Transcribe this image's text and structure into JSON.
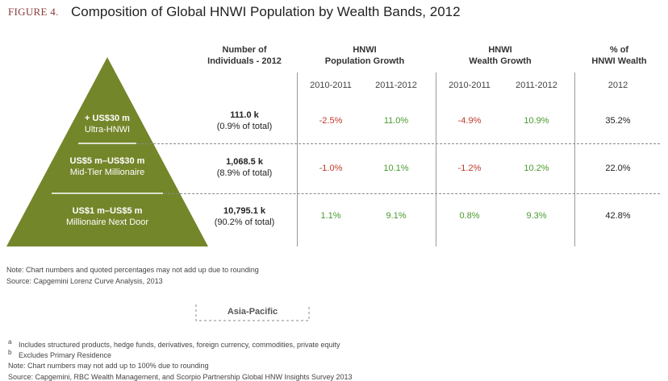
{
  "figure_label": "FIGURE 4.",
  "title": "Composition of Global HNWI Population by Wealth Bands, 2012",
  "headers": {
    "count": [
      "Number of",
      "Individuals - 2012"
    ],
    "pop_growth": [
      "HNWI",
      "Population Growth"
    ],
    "wealth_growth": [
      "HNWI",
      "Wealth Growth"
    ],
    "share": [
      "% of",
      "HNWI Wealth"
    ]
  },
  "subheaders": {
    "pop_2011": "2010-2011",
    "pop_2012": "2011-2012",
    "wealth_2011": "2010-2011",
    "wealth_2012": "2011-2012",
    "share_year": "2012"
  },
  "chart_data": {
    "type": "table",
    "title": "Composition of Global HNWI Population by Wealth Bands, 2012",
    "columns": [
      "Number of Individuals - 2012",
      "HNWI Population Growth 2010-2011",
      "HNWI Population Growth 2011-2012",
      "HNWI Wealth Growth 2010-2011",
      "HNWI Wealth Growth 2011-2012",
      "% of HNWI Wealth 2012"
    ],
    "rows": [
      {
        "band": "+ US$30 m",
        "band_name": "Ultra-HNWI",
        "count": "111.0 k",
        "count_share": "(0.9% of total)",
        "pop_growth_2011": "-2.5%",
        "pop_growth_2012": "11.0%",
        "wealth_growth_2011": "-4.9%",
        "wealth_growth_2012": "10.9%",
        "wealth_share": "35.2%"
      },
      {
        "band": "US$5 m–US$30 m",
        "band_name": "Mid-Tier Millionaire",
        "count": "1,068.5 k",
        "count_share": "(8.9% of total)",
        "pop_growth_2011": "-1.0%",
        "pop_growth_2012": "10.1%",
        "wealth_growth_2011": "-1.2%",
        "wealth_growth_2012": "10.2%",
        "wealth_share": "22.0%"
      },
      {
        "band": "US$1 m–US$5 m",
        "band_name": "Millionaire Next Door",
        "count": "10,795.1 k",
        "count_share": "(90.2% of total)",
        "pop_growth_2011": "1.1%",
        "pop_growth_2012": "9.1%",
        "wealth_growth_2011": "0.8%",
        "wealth_growth_2012": "9.3%",
        "wealth_share": "42.8%"
      }
    ]
  },
  "colors": {
    "pyramid": "#74862a",
    "negative": "#c0392b",
    "positive": "#4a9a2e",
    "figure_label": "#8a3b3b"
  },
  "notes": {
    "line1": "Note: Chart numbers and quoted percentages may not add up due to rounding",
    "line2": "Source: Capgemini Lorenz Curve Analysis, 2013"
  },
  "asia_pacific": "Asia-Pacific",
  "footnotes": {
    "a_mark": "a",
    "a_text": "Includes structured products, hedge funds, derivatives, foreign currency, commodities, private equity",
    "b_mark": "b",
    "b_text": "Excludes Primary Residence",
    "note": "Note: Chart numbers may not add up to 100% due to rounding",
    "source": "Source: Capgemini, RBC Wealth Management, and Scorpio Partnership Global HNW Insights Survey 2013"
  }
}
